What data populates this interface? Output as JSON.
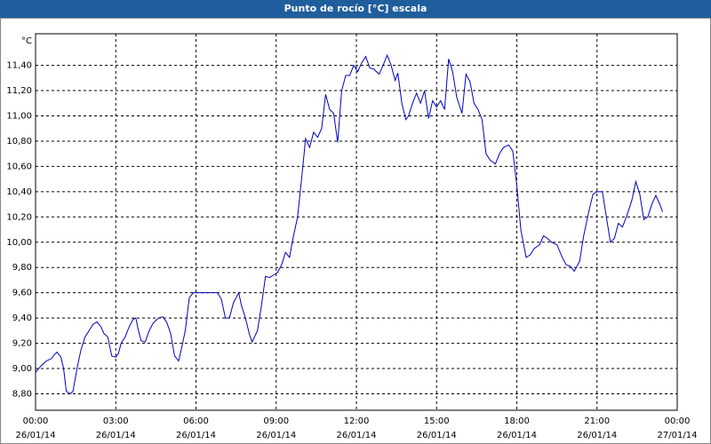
{
  "chart_data": {
    "type": "line",
    "title": "Punto de rocío [°C] escala",
    "y_unit": "°C",
    "x": [
      0.0,
      0.2,
      0.4,
      0.6,
      0.7,
      0.8,
      0.95,
      1.05,
      1.15,
      1.3,
      1.4,
      1.55,
      1.7,
      1.85,
      2.0,
      2.15,
      2.3,
      2.45,
      2.55,
      2.7,
      2.85,
      3.0,
      3.1,
      3.2,
      3.35,
      3.5,
      3.65,
      3.75,
      3.85,
      3.95,
      4.1,
      4.25,
      4.4,
      4.6,
      4.75,
      4.9,
      5.05,
      5.2,
      5.35,
      5.45,
      5.6,
      5.75,
      5.9,
      6.0,
      6.3,
      6.6,
      6.8,
      6.95,
      7.1,
      7.25,
      7.4,
      7.6,
      7.7,
      7.85,
      8.0,
      8.1,
      8.3,
      8.45,
      8.6,
      8.75,
      8.9,
      9.05,
      9.2,
      9.35,
      9.5,
      9.6,
      9.8,
      9.95,
      10.1,
      10.25,
      10.4,
      10.55,
      10.7,
      10.85,
      11.0,
      11.15,
      11.3,
      11.45,
      11.6,
      11.75,
      11.9,
      12.05,
      12.2,
      12.35,
      12.5,
      12.65,
      12.85,
      13.0,
      13.15,
      13.3,
      13.45,
      13.55,
      13.7,
      13.85,
      13.95,
      14.1,
      14.25,
      14.4,
      14.55,
      14.7,
      14.85,
      15.0,
      15.15,
      15.3,
      15.45,
      15.6,
      15.75,
      15.95,
      16.1,
      16.25,
      16.4,
      16.55,
      16.7,
      16.85,
      17.0,
      17.2,
      17.35,
      17.5,
      17.7,
      17.85,
      18.0,
      18.15,
      18.35,
      18.5,
      18.65,
      18.85,
      19.0,
      19.15,
      19.3,
      19.5,
      19.7,
      19.85,
      20.0,
      20.15,
      20.35,
      20.5,
      20.7,
      20.85,
      21.0,
      21.2,
      21.35,
      21.5,
      21.65,
      21.8,
      21.95,
      22.1,
      22.3,
      22.45,
      22.6,
      22.75,
      22.9,
      23.05,
      23.2,
      23.35,
      23.45
    ],
    "series": [
      {
        "name": "Punto de rocío",
        "color": "#0000c0",
        "values": [
          8.97,
          9.02,
          9.06,
          9.08,
          9.11,
          9.13,
          9.09,
          9.0,
          8.82,
          8.8,
          8.82,
          9.0,
          9.15,
          9.25,
          9.3,
          9.35,
          9.37,
          9.33,
          9.28,
          9.25,
          9.1,
          9.09,
          9.12,
          9.2,
          9.25,
          9.33,
          9.39,
          9.4,
          9.3,
          9.22,
          9.21,
          9.3,
          9.36,
          9.4,
          9.41,
          9.37,
          9.28,
          9.1,
          9.06,
          9.15,
          9.3,
          9.56,
          9.6,
          9.6,
          9.6,
          9.6,
          9.6,
          9.55,
          9.4,
          9.4,
          9.52,
          9.6,
          9.5,
          9.4,
          9.27,
          9.21,
          9.3,
          9.5,
          9.73,
          9.72,
          9.74,
          9.76,
          9.82,
          9.92,
          9.88,
          10.0,
          10.2,
          10.5,
          10.82,
          10.75,
          10.87,
          10.83,
          10.9,
          11.17,
          11.05,
          11.02,
          10.79,
          11.2,
          11.32,
          11.32,
          11.4,
          11.35,
          11.42,
          11.47,
          11.38,
          11.37,
          11.33,
          11.4,
          11.48,
          11.4,
          11.28,
          11.34,
          11.1,
          10.97,
          11.0,
          11.1,
          11.18,
          11.1,
          11.2,
          10.98,
          11.12,
          11.07,
          11.12,
          11.05,
          11.45,
          11.35,
          11.15,
          11.02,
          11.33,
          11.27,
          11.1,
          11.05,
          10.97,
          10.7,
          10.65,
          10.62,
          10.7,
          10.75,
          10.77,
          10.72,
          10.45,
          10.1,
          9.88,
          9.9,
          9.95,
          9.98,
          10.05,
          10.03,
          10.0,
          9.98,
          9.88,
          9.82,
          9.81,
          9.77,
          9.85,
          10.05,
          10.25,
          10.38,
          10.4,
          10.4,
          10.2,
          10.0,
          10.03,
          10.15,
          10.12,
          10.2,
          10.33,
          10.48,
          10.38,
          10.18,
          10.2,
          10.3,
          10.37,
          10.3,
          10.24
        ]
      }
    ],
    "xlim": [
      0,
      24
    ],
    "xticks": [
      {
        "value": 0,
        "label": "00:00",
        "sublabel": "26/01/14"
      },
      {
        "value": 3,
        "label": "03:00",
        "sublabel": "26/01/14"
      },
      {
        "value": 6,
        "label": "06:00",
        "sublabel": "26/01/14"
      },
      {
        "value": 9,
        "label": "09:00",
        "sublabel": "26/01/14"
      },
      {
        "value": 12,
        "label": "12:00",
        "sublabel": "26/01/14"
      },
      {
        "value": 15,
        "label": "15:00",
        "sublabel": "26/01/14"
      },
      {
        "value": 18,
        "label": "18:00",
        "sublabel": "26/01/14"
      },
      {
        "value": 21,
        "label": "21:00",
        "sublabel": "26/01/14"
      },
      {
        "value": 24,
        "label": "00:00",
        "sublabel": "27/01/14"
      }
    ],
    "ylim": [
      8.67,
      11.65
    ],
    "yticks": [
      {
        "value": 8.8,
        "label": "8,80"
      },
      {
        "value": 9.0,
        "label": "9,00"
      },
      {
        "value": 9.2,
        "label": "9,20"
      },
      {
        "value": 9.4,
        "label": "9,40"
      },
      {
        "value": 9.6,
        "label": "9,60"
      },
      {
        "value": 9.8,
        "label": "9,80"
      },
      {
        "value": 10.0,
        "label": "10,00"
      },
      {
        "value": 10.2,
        "label": "10,20"
      },
      {
        "value": 10.4,
        "label": "10,40"
      },
      {
        "value": 10.6,
        "label": "10,60"
      },
      {
        "value": 10.8,
        "label": "10,80"
      },
      {
        "value": 11.0,
        "label": "11,00"
      },
      {
        "value": 11.2,
        "label": "11,20"
      },
      {
        "value": 11.4,
        "label": "11,40"
      }
    ],
    "grid": true
  }
}
